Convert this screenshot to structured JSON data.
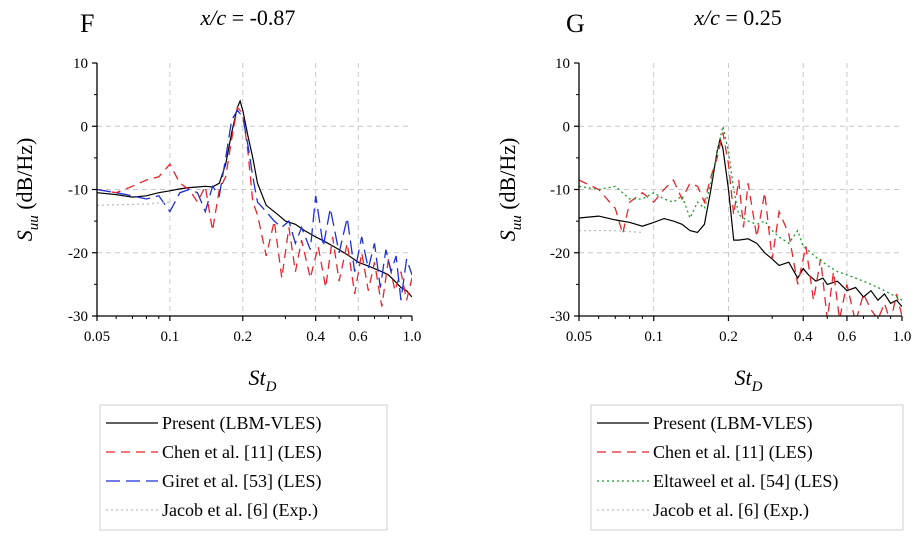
{
  "chart_data": [
    {
      "type": "line",
      "panel_label": "F",
      "title": "x/c = -0.87",
      "xlabel": "St_D",
      "ylabel": "S_uu (dB/Hz)",
      "xscale": "log",
      "xlim": [
        0.05,
        1.0
      ],
      "ylim": [
        -30,
        10
      ],
      "x_ticks": [
        0.05,
        0.1,
        0.2,
        0.4,
        0.6,
        1.0
      ],
      "x_tick_labels": [
        "0.05",
        "0.1",
        "0.2",
        "0.4",
        "0.6",
        "1.0"
      ],
      "y_ticks": [
        10,
        0,
        -10,
        -20,
        -30
      ],
      "y_tick_labels": [
        "10",
        "0",
        "-10",
        "-20",
        "-30"
      ],
      "grid": true,
      "legend_position": "below",
      "series": [
        {
          "name": "Present (LBM-VLES)",
          "style": "solid",
          "color": "#000000",
          "x": [
            0.05,
            0.06,
            0.07,
            0.08,
            0.09,
            0.1,
            0.11,
            0.12,
            0.13,
            0.14,
            0.15,
            0.16,
            0.17,
            0.18,
            0.19,
            0.195,
            0.2,
            0.21,
            0.22,
            0.23,
            0.25,
            0.28,
            0.3,
            0.33,
            0.36,
            0.4,
            0.45,
            0.5,
            0.55,
            0.6,
            0.65,
            0.7,
            0.75,
            0.8,
            0.85,
            0.9,
            0.95,
            1.0
          ],
          "y": [
            -10.5,
            -10.8,
            -11.2,
            -11.0,
            -10.5,
            -10.2,
            -9.9,
            -9.7,
            -9.6,
            -9.5,
            -9.6,
            -9.0,
            -6.0,
            -1.0,
            3.0,
            4.0,
            2.5,
            -1.5,
            -5.0,
            -9.0,
            -12.5,
            -14.0,
            -15.0,
            -15.5,
            -16.5,
            -17.5,
            -18.5,
            -19.5,
            -20.5,
            -21.5,
            -22.0,
            -22.5,
            -23.0,
            -23.5,
            -24.5,
            -25.5,
            -26.0,
            -27.0
          ]
        },
        {
          "name": "Chen et al. [11] (LES)",
          "style": "dashed",
          "color": "#e8242c",
          "x": [
            0.05,
            0.06,
            0.07,
            0.08,
            0.09,
            0.1,
            0.11,
            0.12,
            0.13,
            0.14,
            0.15,
            0.16,
            0.17,
            0.18,
            0.19,
            0.2,
            0.21,
            0.22,
            0.23,
            0.25,
            0.27,
            0.29,
            0.31,
            0.33,
            0.35,
            0.38,
            0.41,
            0.44,
            0.47,
            0.5,
            0.54,
            0.58,
            0.62,
            0.66,
            0.7,
            0.75,
            0.8,
            0.85,
            0.9,
            0.95,
            1.0
          ],
          "y": [
            -10.0,
            -10.5,
            -9.5,
            -8.5,
            -8.0,
            -6.0,
            -9.0,
            -10.0,
            -12.0,
            -9.5,
            -16.5,
            -10.0,
            -8.0,
            -2.0,
            3.0,
            2.0,
            -4.0,
            -12.0,
            -14.0,
            -20.5,
            -15.0,
            -24.0,
            -16.0,
            -23.0,
            -18.0,
            -24.0,
            -19.0,
            -25.5,
            -17.5,
            -24.5,
            -18.5,
            -26.5,
            -20.0,
            -26.0,
            -21.5,
            -28.5,
            -21.0,
            -26.0,
            -23.0,
            -27.5,
            -24.0
          ]
        },
        {
          "name": "Giret et al. [53] (LES)",
          "style": "longdash",
          "color": "#1f2fd8",
          "x": [
            0.05,
            0.06,
            0.07,
            0.08,
            0.09,
            0.1,
            0.11,
            0.12,
            0.13,
            0.14,
            0.15,
            0.16,
            0.17,
            0.18,
            0.19,
            0.2,
            0.21,
            0.22,
            0.23,
            0.25,
            0.27,
            0.29,
            0.31,
            0.33,
            0.35,
            0.38,
            0.4,
            0.43,
            0.46,
            0.5,
            0.54,
            0.58,
            0.62,
            0.66,
            0.7,
            0.74,
            0.78,
            0.82,
            0.86,
            0.9,
            0.95,
            1.0
          ],
          "y": [
            -10.0,
            -10.5,
            -11.0,
            -11.5,
            -11.0,
            -13.5,
            -10.5,
            -10.0,
            -10.5,
            -13.5,
            -9.5,
            -11.0,
            -5.0,
            1.0,
            2.5,
            1.5,
            -3.0,
            -8.0,
            -12.0,
            -13.5,
            -15.0,
            -16.0,
            -15.0,
            -18.5,
            -16.0,
            -19.5,
            -11.0,
            -19.0,
            -13.0,
            -20.0,
            -14.5,
            -23.0,
            -17.5,
            -22.5,
            -18.5,
            -25.5,
            -19.5,
            -23.0,
            -20.5,
            -27.5,
            -21.0,
            -23.5
          ]
        },
        {
          "name": "Jacob et al. [6] (Exp.)",
          "style": "dotted",
          "color": "#bdbdbd",
          "x": [
            0.05,
            0.08,
            0.1
          ],
          "y": [
            -12.5,
            -12.3,
            -12.0
          ]
        }
      ]
    },
    {
      "type": "line",
      "panel_label": "G",
      "title": "x/c = 0.25",
      "xlabel": "St_D",
      "ylabel": "S_uu (dB/Hz)",
      "xscale": "log",
      "xlim": [
        0.05,
        1.0
      ],
      "ylim": [
        -30,
        10
      ],
      "x_ticks": [
        0.05,
        0.1,
        0.2,
        0.4,
        0.6,
        1.0
      ],
      "x_tick_labels": [
        "0.05",
        "0.1",
        "0.2",
        "0.4",
        "0.6",
        "1.0"
      ],
      "y_ticks": [
        10,
        0,
        -10,
        -20,
        -30
      ],
      "y_tick_labels": [
        "10",
        "0",
        "-10",
        "-20",
        "-30"
      ],
      "grid": true,
      "legend_position": "below",
      "series": [
        {
          "name": "Present (LBM-VLES)",
          "style": "solid",
          "color": "#000000",
          "x": [
            0.05,
            0.06,
            0.07,
            0.08,
            0.09,
            0.1,
            0.11,
            0.12,
            0.13,
            0.14,
            0.15,
            0.16,
            0.17,
            0.18,
            0.185,
            0.19,
            0.2,
            0.21,
            0.22,
            0.24,
            0.26,
            0.28,
            0.3,
            0.32,
            0.35,
            0.38,
            0.4,
            0.42,
            0.45,
            0.48,
            0.5,
            0.55,
            0.6,
            0.65,
            0.7,
            0.75,
            0.8,
            0.85,
            0.9,
            0.95,
            1.0
          ],
          "y": [
            -14.5,
            -14.2,
            -14.8,
            -15.2,
            -15.8,
            -15.2,
            -14.6,
            -15.0,
            -15.5,
            -16.5,
            -16.8,
            -15.5,
            -10.0,
            -4.0,
            -2.0,
            -3.5,
            -10.0,
            -18.0,
            -18.0,
            -17.8,
            -18.5,
            -20.0,
            -21.0,
            -22.0,
            -21.5,
            -24.0,
            -22.5,
            -23.5,
            -24.5,
            -24.0,
            -25.0,
            -24.5,
            -26.0,
            -25.5,
            -27.0,
            -26.0,
            -27.5,
            -26.5,
            -28.0,
            -27.5,
            -28.5
          ]
        },
        {
          "name": "Chen et al. [11] (LES)",
          "style": "dashed",
          "color": "#e8242c",
          "x": [
            0.05,
            0.06,
            0.07,
            0.075,
            0.08,
            0.09,
            0.1,
            0.11,
            0.12,
            0.13,
            0.14,
            0.15,
            0.16,
            0.17,
            0.18,
            0.19,
            0.2,
            0.21,
            0.22,
            0.23,
            0.24,
            0.26,
            0.28,
            0.3,
            0.32,
            0.35,
            0.38,
            0.41,
            0.44,
            0.47,
            0.5,
            0.53,
            0.56,
            0.6,
            0.65,
            0.7,
            0.75,
            0.8,
            0.85,
            0.9,
            0.95,
            1.0
          ],
          "y": [
            -8.5,
            -10.0,
            -13.0,
            -17.0,
            -12.0,
            -10.5,
            -12.0,
            -10.0,
            -8.5,
            -11.5,
            -9.0,
            -9.5,
            -12.0,
            -8.0,
            -5.0,
            -1.0,
            -6.0,
            -14.0,
            -8.5,
            -16.0,
            -9.0,
            -17.5,
            -10.5,
            -21.0,
            -13.5,
            -17.0,
            -25.0,
            -19.0,
            -27.5,
            -21.0,
            -30.5,
            -23.0,
            -30.5,
            -25.0,
            -31.0,
            -26.5,
            -29.0,
            -30.5,
            -28.0,
            -31.0,
            -26.5,
            -30.0
          ]
        },
        {
          "name": "Eltaweel et al. [54] (LES)",
          "style": "dotted",
          "color": "#1f9a2c",
          "x": [
            0.05,
            0.06,
            0.07,
            0.08,
            0.09,
            0.1,
            0.11,
            0.12,
            0.13,
            0.14,
            0.15,
            0.16,
            0.17,
            0.18,
            0.19,
            0.2,
            0.21,
            0.22,
            0.24,
            0.26,
            0.28,
            0.3,
            0.32,
            0.35,
            0.38,
            0.4,
            0.43,
            0.46,
            0.5,
            0.55,
            0.6,
            0.65,
            0.7,
            0.75,
            0.8,
            0.85,
            0.9,
            0.95,
            1.0
          ],
          "y": [
            -9.5,
            -10.0,
            -9.5,
            -11.5,
            -11.5,
            -10.5,
            -11.5,
            -12.0,
            -11.0,
            -14.5,
            -12.0,
            -13.0,
            -9.0,
            -4.0,
            0.0,
            -4.0,
            -10.0,
            -14.0,
            -15.0,
            -15.5,
            -15.0,
            -16.5,
            -17.5,
            -18.5,
            -16.5,
            -19.0,
            -20.0,
            -21.0,
            -22.0,
            -23.0,
            -23.5,
            -24.0,
            -24.5,
            -25.0,
            -25.5,
            -26.0,
            -26.5,
            -27.0,
            -27.5
          ]
        },
        {
          "name": "Jacob et al. [6] (Exp.)",
          "style": "dotted",
          "color": "#bdbdbd",
          "x": [
            0.05,
            0.07,
            0.09
          ],
          "y": [
            -16.5,
            -16.5,
            -16.8
          ]
        }
      ]
    }
  ]
}
